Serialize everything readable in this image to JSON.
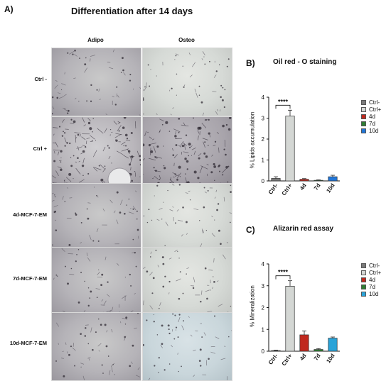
{
  "panel_a": {
    "letter": "A)",
    "title": "Differentiation after 14 days",
    "columns": [
      "Adipo",
      "Osteo"
    ],
    "rows": [
      "Ctrl -",
      "Ctrl +",
      "4d-MCF-7-EM",
      "7d-MCF-7-EM",
      "10d-MCF-7-EM"
    ]
  },
  "chart_data": [
    {
      "type": "bar",
      "panel_letter": "B)",
      "title": "Oil red - O staining",
      "ylabel": "% Lipids accumulation",
      "xlabel": "",
      "categories": [
        "Ctrl-",
        "Ctrl+",
        "4d",
        "7d",
        "10d"
      ],
      "values": [
        0.12,
        3.1,
        0.08,
        0.03,
        0.2
      ],
      "errors": [
        0.08,
        0.28,
        0.03,
        0.02,
        0.07
      ],
      "colors": [
        "#7a7a7a",
        "#d4d7d4",
        "#c0281e",
        "#2e7d32",
        "#2176d8"
      ],
      "ylim": [
        0,
        4
      ],
      "yticks": [
        "0",
        "1",
        "2",
        "3",
        "4"
      ],
      "significance": {
        "from": "Ctrl-",
        "to": "Ctrl+",
        "label": "****"
      },
      "legend": [
        "Ctrl-",
        "Ctrl+",
        "4d",
        "7d",
        "10d"
      ],
      "legend_placement": "right"
    },
    {
      "type": "bar",
      "panel_letter": "C)",
      "title": "Alizarin red assay",
      "ylabel": "% Mineralization",
      "xlabel": "",
      "categories": [
        "Ctrl-",
        "Ctrl+",
        "4d",
        "7d",
        "10d"
      ],
      "values": [
        0.03,
        2.98,
        0.75,
        0.08,
        0.6
      ],
      "errors": [
        0.02,
        0.25,
        0.18,
        0.04,
        0.05
      ],
      "colors": [
        "#7a7a7a",
        "#d4d7d4",
        "#c0281e",
        "#2e7d32",
        "#2aa3d8"
      ],
      "ylim": [
        0,
        4
      ],
      "yticks": [
        "0",
        "1",
        "2",
        "3",
        "4"
      ],
      "significance": {
        "from": "Ctrl-",
        "to": "Ctrl+",
        "label": "****"
      },
      "legend": [
        "Ctrl-",
        "Ctrl+",
        "4d",
        "7d",
        "10d"
      ],
      "legend_placement": "right"
    }
  ]
}
